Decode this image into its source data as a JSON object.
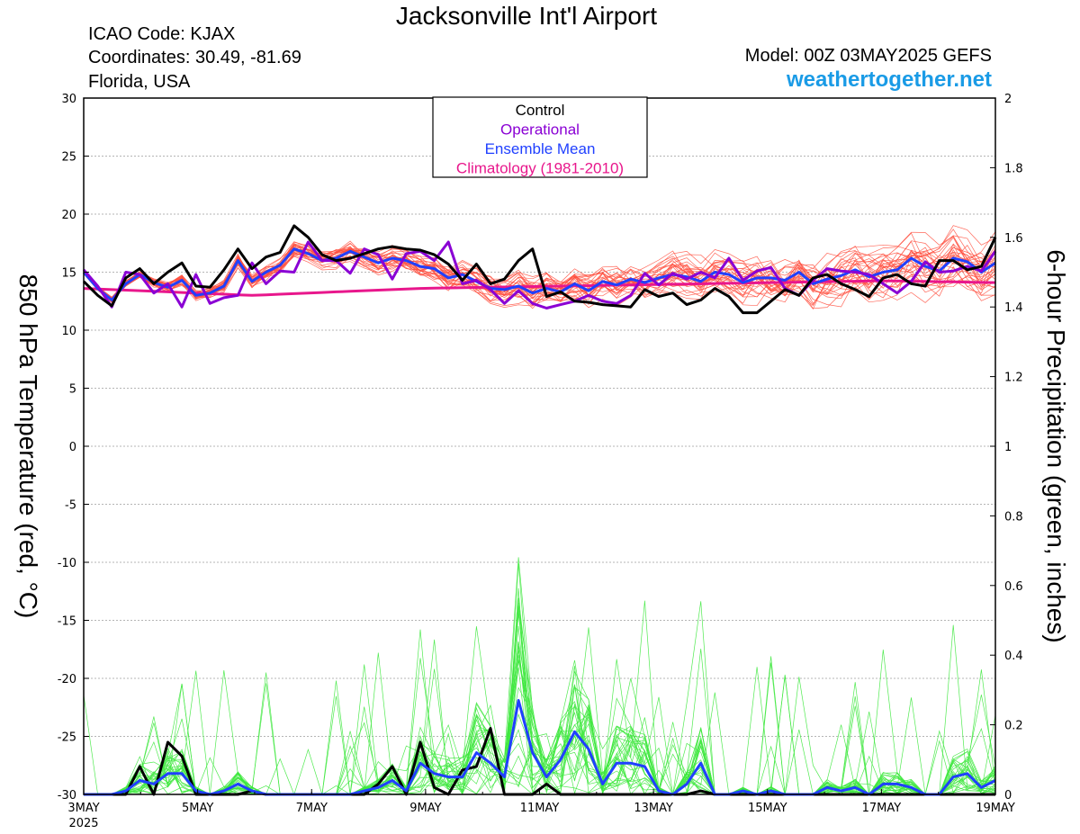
{
  "header": {
    "title": "Jacksonville Int'l Airport",
    "icao": "ICAO Code: KJAX",
    "coordinates": "Coordinates: 30.49, -81.69",
    "region": "Florida, USA",
    "model": "Model: 00Z 03MAY2025 GEFS",
    "site": "weathertogether.net"
  },
  "colors": {
    "control": "#000000",
    "operational": "#8a00d4",
    "ensemble_mean": "#2040ff",
    "climatology": "#e8178c",
    "temp_members": "#ff4d3d",
    "precip_members": "#3ee83e",
    "site": "#1a9be6"
  },
  "chart_data": {
    "type": "line",
    "xlabel": "",
    "x_start": "3MAY 2025",
    "x_step_hours": 6,
    "x_ticks": [
      "3MAY",
      "5MAY",
      "7MAY",
      "9MAY",
      "11MAY",
      "13MAY",
      "15MAY",
      "17MAY",
      "19MAY"
    ],
    "x_year_label": "2025",
    "ylabel_left": "850 hPa Temperature (red, °C)",
    "ylabel_right": "6-hour Precipitation (green, inches)",
    "ylim_left": [
      -30,
      30
    ],
    "yticks_left": [
      "30",
      "25",
      "20",
      "15",
      "10",
      "5",
      "0",
      "-5",
      "-10",
      "-15",
      "-20",
      "-25",
      "-30"
    ],
    "ylim_right": [
      0,
      2
    ],
    "yticks_right": [
      "2",
      "1.8",
      "1.6",
      "1.4",
      "1.2",
      "1",
      "0.8",
      "0.6",
      "0.4",
      "0.2",
      "0"
    ],
    "grid": true,
    "legend": {
      "placement": "top-center",
      "entries": [
        "Control",
        "Operational",
        "Ensemble Mean",
        "Climatology (1981-2010)"
      ]
    },
    "temperature_series": [
      {
        "name": "Control",
        "values": [
          14.2,
          13.0,
          12.1,
          14.5,
          15.3,
          14.0,
          15.0,
          15.8,
          13.8,
          13.7,
          15.2,
          17.0,
          15.3,
          16.3,
          16.7,
          19.0,
          18.0,
          16.5,
          16.0,
          16.2,
          16.6,
          17.0,
          17.2,
          17.0,
          16.9,
          16.5,
          15.7,
          14.3,
          15.7,
          14.0,
          14.4,
          16.0,
          17.0,
          12.9,
          13.3,
          12.5,
          12.4,
          12.2,
          12.1,
          12.0,
          13.5,
          12.9,
          13.2,
          12.2,
          12.6,
          13.6,
          12.9,
          11.5,
          11.5,
          12.5,
          13.5,
          13.0,
          14.5,
          14.8,
          14.0,
          13.5,
          12.9,
          14.5,
          14.8,
          14.0,
          13.8,
          16.0,
          16.0,
          15.2,
          15.5,
          18.0
        ]
      },
      {
        "name": "Operational",
        "values": [
          15.2,
          13.8,
          12.0,
          15.0,
          14.8,
          13.2,
          14.0,
          12.0,
          14.8,
          12.3,
          12.8,
          13.0,
          15.8,
          14.0,
          15.1,
          15.0,
          17.6,
          16.0,
          16.0,
          14.9,
          17.0,
          16.5,
          14.4,
          16.6,
          16.8,
          16.0,
          17.6,
          14.0,
          14.3,
          13.5,
          12.3,
          13.4,
          12.3,
          11.9,
          12.2,
          12.5,
          13.0,
          12.5,
          12.3,
          13.0,
          14.9,
          13.9,
          14.9,
          14.4,
          15.0,
          14.5,
          16.2,
          14.3,
          15.1,
          15.4,
          13.6,
          13.0,
          14.3,
          15.3,
          15.1,
          15.0,
          14.8,
          14.0,
          13.2,
          14.2,
          15.9,
          15.0,
          15.1,
          15.5,
          15.1,
          16.8
        ]
      },
      {
        "name": "Ensemble Mean",
        "values": [
          15.0,
          13.6,
          12.6,
          14.0,
          14.8,
          14.1,
          13.7,
          14.3,
          13.0,
          13.2,
          13.8,
          16.0,
          14.2,
          15.0,
          15.6,
          17.0,
          16.6,
          16.0,
          16.2,
          16.8,
          16.3,
          15.8,
          16.2,
          16.0,
          15.5,
          15.3,
          14.5,
          14.8,
          14.2,
          13.6,
          13.5,
          13.8,
          13.2,
          13.6,
          13.3,
          14.0,
          13.4,
          14.2,
          13.9,
          14.4,
          14.1,
          14.5,
          14.8,
          14.6,
          14.2,
          15.0,
          14.8,
          14.1,
          14.5,
          14.5,
          14.3,
          15.0,
          14.0,
          14.4,
          14.7,
          15.2,
          14.6,
          15.0,
          15.2,
          16.2,
          15.5,
          15.1,
          16.2,
          15.9,
          15.0,
          15.8
        ]
      },
      {
        "name": "Climatology (1981-2010)",
        "values": [
          13.6,
          13.55,
          13.5,
          13.45,
          13.4,
          13.35,
          13.3,
          13.25,
          13.2,
          13.15,
          13.1,
          13.05,
          13.0,
          13.05,
          13.1,
          13.15,
          13.2,
          13.25,
          13.3,
          13.35,
          13.4,
          13.45,
          13.5,
          13.55,
          13.6,
          13.62,
          13.64,
          13.66,
          13.68,
          13.7,
          13.72,
          13.74,
          13.76,
          13.78,
          13.8,
          13.82,
          13.84,
          13.86,
          13.88,
          13.9,
          13.92,
          13.94,
          13.96,
          13.98,
          14.0,
          14.02,
          14.04,
          14.06,
          14.08,
          14.1,
          14.12,
          14.14,
          14.16,
          14.18,
          14.2,
          14.22,
          14.24,
          14.25,
          14.24,
          14.22,
          14.2,
          14.18,
          14.16,
          14.14,
          14.12,
          14.1
        ]
      }
    ],
    "precip_series": [
      {
        "name": "Control",
        "values": [
          0,
          0,
          0,
          0,
          0.08,
          0,
          0.15,
          0.11,
          0,
          0,
          0,
          0,
          0.01,
          0,
          0,
          0,
          0,
          0,
          0,
          0,
          0,
          0.03,
          0.08,
          0,
          0.15,
          0.02,
          0,
          0.07,
          0.08,
          0.19,
          0,
          0,
          0,
          0.03,
          0,
          0,
          0,
          0,
          0,
          0,
          0,
          0,
          0,
          0,
          0.01,
          0,
          0,
          0,
          0,
          0,
          0,
          0,
          0,
          0,
          0,
          0,
          0,
          0,
          0,
          0,
          0,
          0,
          0,
          0,
          0,
          0
        ]
      },
      {
        "name": "Ensemble Mean",
        "values": [
          0,
          0,
          0,
          0.01,
          0.04,
          0.03,
          0.06,
          0.06,
          0.01,
          0,
          0.01,
          0.03,
          0.01,
          0,
          0,
          0,
          0,
          0,
          0,
          0,
          0.01,
          0.02,
          0.04,
          0.01,
          0.09,
          0.06,
          0.05,
          0.05,
          0.12,
          0.09,
          0.05,
          0.27,
          0.12,
          0.05,
          0.1,
          0.18,
          0.13,
          0.03,
          0.09,
          0.09,
          0.08,
          0.01,
          0,
          0.03,
          0.09,
          0,
          0,
          0.01,
          0,
          0.01,
          0,
          0,
          0,
          0.02,
          0.01,
          0.02,
          0,
          0.03,
          0.03,
          0.02,
          0,
          0,
          0.05,
          0.06,
          0.02,
          0.04
        ]
      }
    ],
    "temperature_members_count": 30,
    "precip_members_count": 30
  }
}
